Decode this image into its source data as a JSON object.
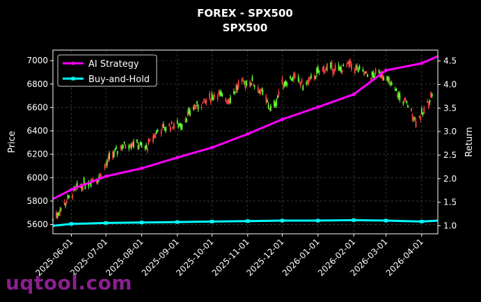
{
  "chart_data": {
    "type": "line",
    "title": "FOREX - SPX500",
    "subtitle": "SPX500",
    "ylabel": "Price",
    "ylabel_right": "Return",
    "ylim": [
      5520,
      7090
    ],
    "ylim_right": [
      0.83,
      4.73
    ],
    "y_ticks": [
      5600,
      5800,
      6000,
      6200,
      6400,
      6600,
      6800,
      7000
    ],
    "y_ticks_right": [
      1.0,
      1.5,
      2.0,
      2.5,
      3.0,
      3.5,
      4.0,
      4.5
    ],
    "xlim": [
      "2025-05-16",
      "2026-04-15"
    ],
    "x_ticks": [
      "2025-06-01",
      "2025-07-01",
      "2025-08-01",
      "2025-09-01",
      "2025-10-01",
      "2025-11-01",
      "2025-12-01",
      "2026-01-01",
      "2026-02-01",
      "2026-03-01",
      "2026-04-01"
    ],
    "grid": true,
    "legend_position": "upper-left",
    "price_series": [
      {
        "date": "2025-05-16",
        "value": 5640
      },
      {
        "date": "2025-05-25",
        "value": 5760
      },
      {
        "date": "2025-06-05",
        "value": 5900
      },
      {
        "date": "2025-06-15",
        "value": 5960
      },
      {
        "date": "2025-06-25",
        "value": 6000
      },
      {
        "date": "2025-07-05",
        "value": 6180
      },
      {
        "date": "2025-07-15",
        "value": 6270
      },
      {
        "date": "2025-07-25",
        "value": 6300
      },
      {
        "date": "2025-08-05",
        "value": 6250
      },
      {
        "date": "2025-08-15",
        "value": 6400
      },
      {
        "date": "2025-08-25",
        "value": 6440
      },
      {
        "date": "2025-09-05",
        "value": 6460
      },
      {
        "date": "2025-09-15",
        "value": 6600
      },
      {
        "date": "2025-09-25",
        "value": 6640
      },
      {
        "date": "2025-10-05",
        "value": 6720
      },
      {
        "date": "2025-10-15",
        "value": 6660
      },
      {
        "date": "2025-10-25",
        "value": 6800
      },
      {
        "date": "2025-11-05",
        "value": 6820
      },
      {
        "date": "2025-11-15",
        "value": 6700
      },
      {
        "date": "2025-11-22",
        "value": 6560
      },
      {
        "date": "2025-12-01",
        "value": 6800
      },
      {
        "date": "2025-12-10",
        "value": 6860
      },
      {
        "date": "2025-12-20",
        "value": 6780
      },
      {
        "date": "2026-01-01",
        "value": 6900
      },
      {
        "date": "2026-01-10",
        "value": 6940
      },
      {
        "date": "2026-01-20",
        "value": 6920
      },
      {
        "date": "2026-01-28",
        "value": 6960
      },
      {
        "date": "2026-02-05",
        "value": 6920
      },
      {
        "date": "2026-02-15",
        "value": 6860
      },
      {
        "date": "2026-02-25",
        "value": 6900
      },
      {
        "date": "2026-03-05",
        "value": 6800
      },
      {
        "date": "2026-03-12",
        "value": 6700
      },
      {
        "date": "2026-03-20",
        "value": 6620
      },
      {
        "date": "2026-03-27",
        "value": 6480
      },
      {
        "date": "2026-04-03",
        "value": 6560
      },
      {
        "date": "2026-04-10",
        "value": 6720
      }
    ],
    "series": [
      {
        "name": "AI Strategy",
        "color": "#ff00ff",
        "x": [
          "2025-05-16",
          "2025-06-01",
          "2025-07-01",
          "2025-08-01",
          "2025-09-01",
          "2025-10-01",
          "2025-11-01",
          "2025-12-01",
          "2026-01-01",
          "2026-02-01",
          "2026-03-01",
          "2026-04-01",
          "2026-04-15"
        ],
        "values": [
          1.57,
          1.77,
          2.05,
          2.22,
          2.45,
          2.66,
          2.95,
          3.26,
          3.52,
          3.79,
          4.3,
          4.45,
          4.6
        ]
      },
      {
        "name": "Buy-and-Hold",
        "color": "#00ffff",
        "x": [
          "2025-05-16",
          "2025-06-01",
          "2025-07-01",
          "2025-08-01",
          "2025-09-01",
          "2025-10-01",
          "2025-11-01",
          "2025-12-01",
          "2026-01-01",
          "2026-02-01",
          "2026-03-01",
          "2026-04-01",
          "2026-04-15"
        ],
        "values": [
          1.0,
          1.04,
          1.06,
          1.07,
          1.08,
          1.09,
          1.1,
          1.11,
          1.11,
          1.12,
          1.11,
          1.09,
          1.11
        ]
      }
    ]
  },
  "watermark": "uqtool.com"
}
